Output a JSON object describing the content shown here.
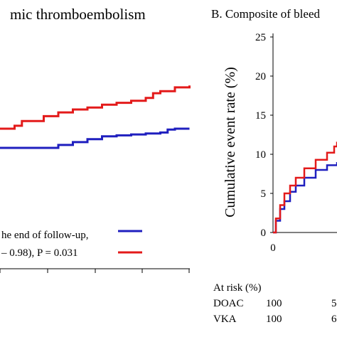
{
  "chart_data": [
    {
      "type": "line",
      "title": "mic thromboembolism",
      "xlabel": "",
      "ylabel": "",
      "legend": {
        "text_lines": [
          "he end of follow-up,",
          "– 0.98), P = 0.031"
        ],
        "placement": "bottom-left"
      },
      "series": [
        {
          "color": "#1f1fbf",
          "x": [
            0,
            4,
            8,
            10,
            12,
            14,
            16,
            18,
            20,
            22,
            23,
            24,
            26
          ],
          "y": [
            8.0,
            8.0,
            8.3,
            8.6,
            8.9,
            9.2,
            9.3,
            9.4,
            9.5,
            9.6,
            9.9,
            10.0,
            10.0
          ]
        },
        {
          "color": "#e31a1a",
          "x": [
            0,
            2,
            3,
            6,
            8,
            10,
            12,
            14,
            16,
            18,
            20,
            21,
            22,
            24,
            26
          ],
          "y": [
            10.0,
            10.3,
            10.8,
            11.3,
            11.7,
            12.0,
            12.2,
            12.5,
            12.7,
            12.9,
            13.2,
            13.7,
            13.9,
            14.3,
            14.5
          ]
        }
      ]
    },
    {
      "type": "line",
      "title": "B. Composite of bleed",
      "xlabel": "",
      "ylabel": "Cumulative event rate (%)",
      "ylim": [
        0,
        25
      ],
      "yticks": [
        "0",
        "5",
        "10",
        "15",
        "20",
        "25"
      ],
      "xticks": [
        "0"
      ],
      "series": [
        {
          "color": "#1f1fbf",
          "x": [
            0,
            0.2,
            0.5,
            0.8,
            1.2,
            1.6,
            2.2,
            3.0,
            3.8,
            4.5
          ],
          "y": [
            0,
            1.5,
            3.0,
            4.0,
            5.2,
            6.0,
            7.0,
            8.0,
            8.6,
            9.0
          ]
        },
        {
          "color": "#e31a1a",
          "x": [
            0,
            0.2,
            0.5,
            0.8,
            1.2,
            1.6,
            2.2,
            3.0,
            3.8,
            4.3,
            4.5
          ],
          "y": [
            0,
            1.8,
            3.5,
            5.0,
            6.0,
            7.0,
            8.2,
            9.3,
            10.2,
            11.0,
            11.6
          ]
        }
      ]
    }
  ],
  "at_risk": {
    "heading": "At risk (%)",
    "rows": [
      {
        "label": "DOAC",
        "values": [
          "100",
          "5"
        ]
      },
      {
        "label": "VKA",
        "values": [
          "100",
          "6"
        ]
      }
    ]
  }
}
